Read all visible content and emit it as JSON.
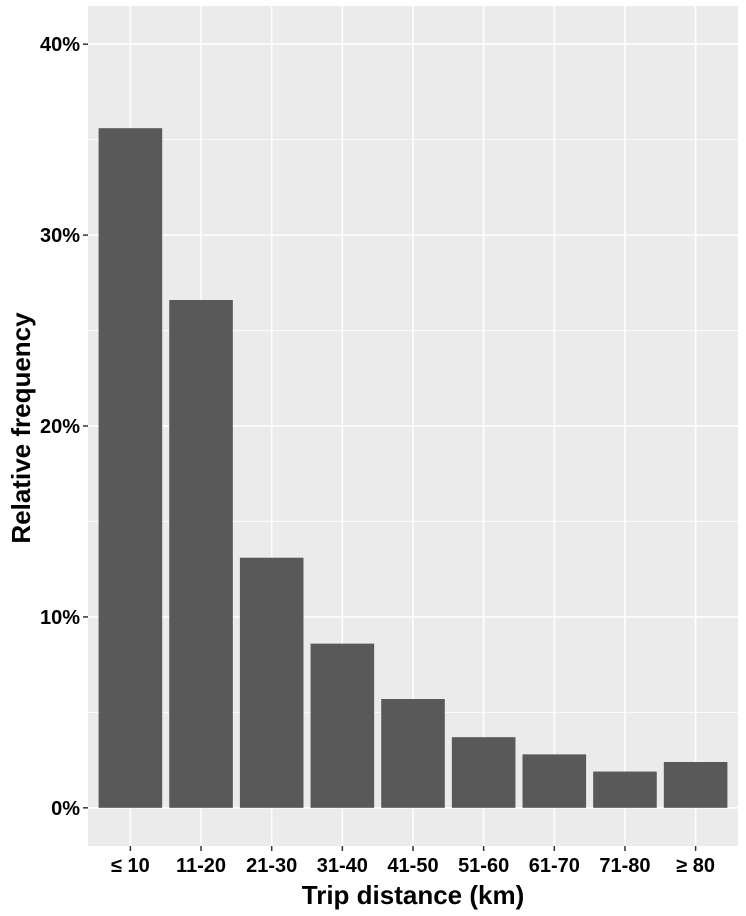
{
  "chart_data": {
    "type": "bar",
    "title": "",
    "xlabel": "Trip distance (km)",
    "ylabel": "Relative frequency",
    "categories": [
      "≤ 10",
      "11-20",
      "21-30",
      "31-40",
      "41-50",
      "51-60",
      "61-70",
      "71-80",
      "≥ 80"
    ],
    "values": [
      35.6,
      26.6,
      13.1,
      8.6,
      5.7,
      3.7,
      2.8,
      1.9,
      2.4
    ],
    "ylim": [
      -2,
      42
    ],
    "yticks": [
      0,
      10,
      20,
      30,
      40
    ],
    "ytick_labels": [
      "0%",
      "10%",
      "20%",
      "30%",
      "40%"
    ],
    "grid": true,
    "colors": {
      "panel": "#EBEBEB",
      "grid": "#FFFFFF",
      "bar": "#595959",
      "tick": "#333333",
      "text": "#000000"
    }
  }
}
